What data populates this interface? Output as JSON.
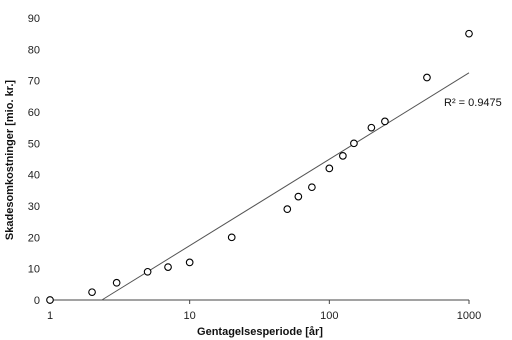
{
  "chart_data": {
    "type": "scatter",
    "xlabel": "Gentagelsesperiode [år]",
    "ylabel": "Skadesomkostninger [mio. kr.]",
    "x_scale": "log",
    "xlim": [
      1,
      1000
    ],
    "ylim": [
      0,
      90
    ],
    "x_ticks": [
      "1",
      "10",
      "100",
      "1000"
    ],
    "y_ticks": [
      "0",
      "10",
      "20",
      "30",
      "40",
      "50",
      "60",
      "70",
      "80",
      "90"
    ],
    "grid": false,
    "legend": "none",
    "annotation": "R² = 0.9475",
    "points": [
      {
        "x": 1,
        "y": 0
      },
      {
        "x": 2,
        "y": 2.5
      },
      {
        "x": 3,
        "y": 5.5
      },
      {
        "x": 5,
        "y": 9
      },
      {
        "x": 7,
        "y": 10.5
      },
      {
        "x": 10,
        "y": 12
      },
      {
        "x": 20,
        "y": 20
      },
      {
        "x": 50,
        "y": 29
      },
      {
        "x": 60,
        "y": 33
      },
      {
        "x": 75,
        "y": 36
      },
      {
        "x": 100,
        "y": 42
      },
      {
        "x": 125,
        "y": 46
      },
      {
        "x": 150,
        "y": 50
      },
      {
        "x": 200,
        "y": 55
      },
      {
        "x": 250,
        "y": 57
      },
      {
        "x": 500,
        "y": 71
      },
      {
        "x": 1000,
        "y": 85
      }
    ],
    "trendline": {
      "x": [
        2.35,
        1000
      ],
      "y": [
        0,
        72.5
      ]
    },
    "colors": {
      "marker_stroke": "#000000",
      "marker_fill": "#ffffff",
      "trendline": "#555555",
      "axis": "#444444"
    }
  }
}
